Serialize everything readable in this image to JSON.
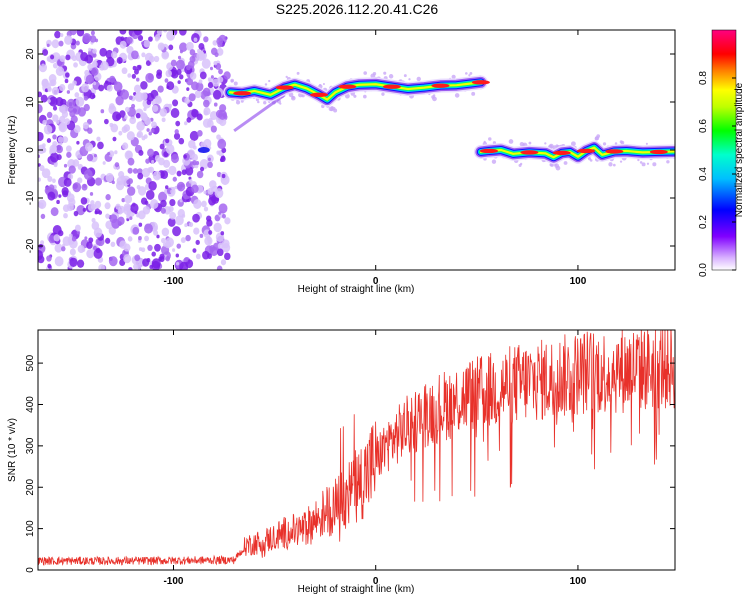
{
  "title": "S225.2026.112.20.41.C26",
  "chart_data": [
    {
      "type": "heatmap",
      "title": "S225.2026.112.20.41.C26",
      "xlabel": "Height of straight line (km)",
      "ylabel": "Frequency (Hz)",
      "xlim": [
        -167,
        148
      ],
      "ylim": [
        -25,
        25
      ],
      "xticks": [
        "-100",
        "0",
        "100"
      ],
      "yticks": [
        "-20",
        "-10",
        "0",
        "10",
        "20"
      ],
      "colorbar": {
        "label": "Normalized spectral amplitude",
        "range": [
          0,
          1
        ],
        "ticks": [
          "0.0",
          "0.2",
          "0.4",
          "0.6",
          "0.8"
        ],
        "colors": [
          "#ffffff",
          "#8000ff",
          "#0000ff",
          "#00ffff",
          "#00ff00",
          "#ffff00",
          "#ff0000",
          "#ff0080"
        ]
      },
      "ridge": {
        "segments": [
          {
            "x": [
              -72,
              -66,
              -60,
              -52,
              -45,
              -40,
              -34,
              -28,
              -24,
              -20,
              -14,
              -8,
              0,
              8,
              16,
              24,
              32,
              40,
              46,
              52
            ],
            "y": [
              12,
              11.8,
              12.3,
              11.5,
              13,
              13.6,
              12.8,
              11.5,
              10.5,
              12,
              13.2,
              13.6,
              13.7,
              13.2,
              12.7,
              13,
              13.4,
              13.5,
              13.8,
              14.1
            ]
          },
          {
            "x": [
              52,
              56,
              62,
              68,
              76,
              84,
              88,
              92,
              96,
              100,
              104,
              108,
              112,
              118,
              124,
              132,
              140,
              148
            ],
            "y": [
              -0.4,
              -0.2,
              0,
              -0.8,
              -0.5,
              -0.7,
              -1.5,
              -0.6,
              -0.4,
              -1.4,
              -0.2,
              0.5,
              -1,
              -0.3,
              -0.2,
              -0.5,
              -0.4,
              -0.3
            ]
          }
        ],
        "noise_region": [
          -167,
          -73
        ]
      }
    },
    {
      "type": "line",
      "xlabel": "Height of straight line (km)",
      "ylabel": "SNR (10 * v/v)",
      "xlim": [
        -167,
        148
      ],
      "ylim": [
        0,
        580
      ],
      "xticks": [
        "-100",
        "0",
        "100"
      ],
      "yticks": [
        "0",
        "100",
        "200",
        "300",
        "400",
        "500"
      ],
      "series": [
        {
          "name": "SNR",
          "color": "#e8312a",
          "x": [
            -167,
            -120,
            -70,
            -64,
            -55,
            -45,
            -35,
            -25,
            -15,
            -5,
            5,
            15,
            25,
            35,
            45,
            55,
            65,
            75,
            85,
            95,
            105,
            115,
            125,
            135,
            148
          ],
          "y": [
            22,
            22,
            24,
            60,
            70,
            90,
            100,
            140,
            170,
            230,
            300,
            345,
            380,
            400,
            420,
            430,
            445,
            455,
            460,
            470,
            480,
            480,
            485,
            490,
            495
          ]
        }
      ]
    }
  ]
}
